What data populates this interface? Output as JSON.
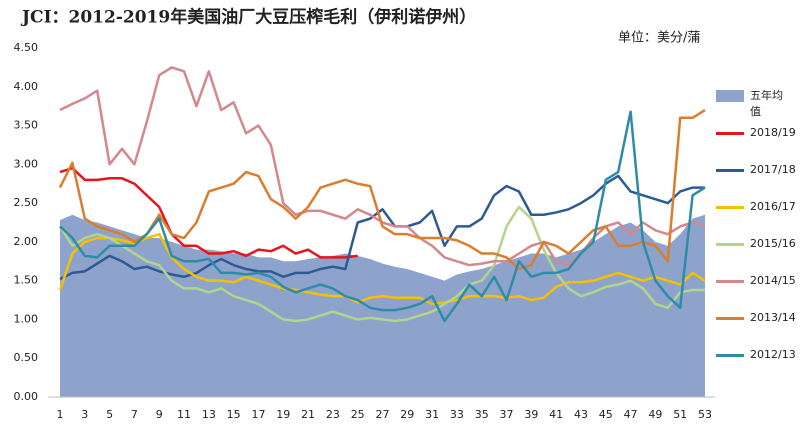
{
  "chart_data": {
    "type": "line",
    "title": "JCI：2012-2019年美国油厂大豆压榨毛利（伊利诺伊州）",
    "unit_label": "单位：美分/蒲",
    "categories": [
      1,
      null,
      3,
      null,
      5,
      null,
      7,
      null,
      9,
      null,
      11,
      null,
      13,
      null,
      15,
      null,
      17,
      null,
      19,
      null,
      21,
      null,
      23,
      null,
      25,
      null,
      27,
      null,
      29,
      null,
      31,
      null,
      33,
      null,
      35,
      null,
      37,
      null,
      39,
      null,
      41,
      null,
      43,
      null,
      45,
      null,
      47,
      null,
      49,
      null,
      51,
      null,
      53
    ],
    "ylim": [
      0,
      4.5
    ],
    "yticks": [
      {
        "value": 0,
        "label": "0.00"
      },
      {
        "value": 0.5,
        "label": "0.50"
      },
      {
        "value": 1,
        "label": "1.00"
      },
      {
        "value": 1.5,
        "label": "1.50"
      },
      {
        "value": 2,
        "label": "2.00"
      },
      {
        "value": 2.5,
        "label": "2.50"
      },
      {
        "value": 3,
        "label": "3.00"
      },
      {
        "value": 3.5,
        "label": "3.50"
      },
      {
        "value": 4,
        "label": "4.00"
      },
      {
        "value": 4.5,
        "label": "4.50"
      }
    ],
    "grid": false,
    "legend": "right",
    "series": [
      {
        "name": "五年均值",
        "type": "area",
        "color": "#8ea3cc",
        "values": [
          2.28,
          2.35,
          2.28,
          2.25,
          2.2,
          2.15,
          2.1,
          2.05,
          2.05,
          2.0,
          1.95,
          1.9,
          1.9,
          1.88,
          1.85,
          1.85,
          1.8,
          1.8,
          1.75,
          1.75,
          1.78,
          1.8,
          1.82,
          1.85,
          1.82,
          1.78,
          1.72,
          1.68,
          1.65,
          1.6,
          1.55,
          1.5,
          1.58,
          1.62,
          1.65,
          1.7,
          1.75,
          1.8,
          1.85,
          1.85,
          1.8,
          1.85,
          1.9,
          2.0,
          2.1,
          2.2,
          2.25,
          2.15,
          2.0,
          1.95,
          2.1,
          2.3,
          2.35
        ]
      },
      {
        "name": "2018/19",
        "type": "line",
        "color": "#e8141c",
        "values": [
          2.9,
          2.95,
          2.8,
          2.8,
          2.82,
          2.82,
          2.75,
          2.6,
          2.45,
          2.1,
          1.95,
          1.95,
          1.85,
          1.85,
          1.88,
          1.82,
          1.9,
          1.88,
          1.95,
          1.85,
          1.9,
          1.8,
          1.8,
          1.8,
          1.82,
          null,
          null,
          null,
          null,
          null,
          null,
          null,
          null,
          null,
          null,
          null,
          null,
          null,
          null,
          null,
          null,
          null,
          null,
          null,
          null,
          null,
          null,
          null,
          null,
          null,
          null,
          null,
          null
        ]
      },
      {
        "name": "2017/18",
        "type": "line",
        "color": "#2e5a94",
        "values": [
          1.52,
          1.6,
          1.62,
          1.72,
          1.82,
          1.75,
          1.65,
          1.68,
          1.62,
          1.58,
          1.55,
          1.6,
          1.7,
          1.78,
          1.7,
          1.65,
          1.62,
          1.62,
          1.55,
          1.6,
          1.6,
          1.65,
          1.68,
          1.65,
          2.25,
          2.3,
          2.42,
          2.2,
          2.2,
          2.25,
          2.4,
          1.95,
          2.2,
          2.2,
          2.3,
          2.6,
          2.72,
          2.65,
          2.35,
          2.35,
          2.38,
          2.42,
          2.5,
          2.6,
          2.75,
          2.85,
          2.65,
          2.6,
          2.55,
          2.5,
          2.65,
          2.7,
          2.7
        ]
      },
      {
        "name": "2016/17",
        "type": "line",
        "color": "#f5c000",
        "values": [
          1.38,
          1.85,
          2.0,
          2.05,
          2.05,
          2.02,
          1.98,
          2.05,
          2.1,
          1.8,
          1.65,
          1.55,
          1.5,
          1.5,
          1.48,
          1.55,
          1.5,
          1.45,
          1.4,
          1.38,
          1.35,
          1.32,
          1.3,
          1.3,
          1.22,
          1.28,
          1.3,
          1.28,
          1.28,
          1.28,
          1.2,
          1.22,
          1.25,
          1.3,
          1.3,
          1.3,
          1.28,
          1.3,
          1.25,
          1.28,
          1.42,
          1.48,
          1.48,
          1.5,
          1.55,
          1.6,
          1.55,
          1.5,
          1.55,
          1.5,
          1.45,
          1.6,
          1.5
        ]
      },
      {
        "name": "2015/16",
        "type": "line",
        "color": "#b3d48a",
        "values": [
          2.2,
          1.95,
          2.05,
          2.1,
          2.05,
          1.95,
          1.85,
          1.75,
          1.7,
          1.5,
          1.4,
          1.4,
          1.35,
          1.4,
          1.3,
          1.25,
          1.2,
          1.1,
          1.0,
          0.98,
          1.0,
          1.05,
          1.1,
          1.05,
          1.0,
          1.02,
          1.0,
          0.98,
          1.0,
          1.05,
          1.1,
          1.2,
          1.3,
          1.45,
          1.5,
          1.7,
          2.2,
          2.45,
          2.3,
          1.9,
          1.6,
          1.4,
          1.3,
          1.35,
          1.42,
          1.45,
          1.5,
          1.4,
          1.2,
          1.15,
          1.35,
          1.38,
          1.38
        ]
      },
      {
        "name": "2014/15",
        "type": "line",
        "color": "#d4888c",
        "values": [
          3.7,
          3.78,
          3.85,
          3.95,
          3.0,
          3.2,
          3.0,
          3.55,
          4.15,
          4.25,
          4.2,
          3.75,
          4.2,
          3.7,
          3.8,
          3.4,
          3.5,
          3.25,
          2.5,
          2.35,
          2.4,
          2.4,
          2.35,
          2.3,
          2.42,
          2.35,
          2.25,
          2.2,
          2.2,
          2.05,
          1.95,
          1.8,
          1.75,
          1.7,
          1.72,
          1.75,
          1.75,
          1.85,
          1.95,
          2.0,
          1.75,
          1.7,
          1.85,
          2.05,
          2.2,
          2.25,
          2.1,
          2.25,
          2.15,
          2.1,
          2.2,
          2.25,
          2.22
        ]
      },
      {
        "name": "2013/14",
        "type": "line",
        "color": "#d97d2e",
        "values": [
          2.7,
          3.02,
          2.3,
          2.2,
          2.15,
          2.1,
          2.0,
          2.1,
          2.35,
          2.1,
          2.05,
          2.25,
          2.65,
          2.7,
          2.75,
          2.9,
          2.85,
          2.55,
          2.45,
          2.3,
          2.45,
          2.7,
          2.75,
          2.8,
          2.75,
          2.72,
          2.2,
          2.1,
          2.1,
          2.05,
          2.05,
          2.05,
          2.02,
          1.95,
          1.85,
          1.85,
          1.8,
          1.65,
          1.7,
          2.0,
          1.95,
          1.85,
          2.0,
          2.15,
          2.2,
          1.95,
          1.95,
          2.0,
          1.95,
          1.75,
          3.6,
          3.6,
          3.7
        ]
      },
      {
        "name": "2012/13",
        "type": "line",
        "color": "#2e8ca8",
        "values": [
          2.2,
          2.05,
          1.82,
          1.8,
          1.95,
          1.95,
          1.95,
          2.1,
          2.3,
          1.82,
          1.75,
          1.75,
          1.78,
          1.6,
          1.6,
          1.58,
          1.6,
          1.55,
          1.42,
          1.35,
          1.4,
          1.45,
          1.4,
          1.3,
          1.25,
          1.15,
          1.12,
          1.12,
          1.15,
          1.2,
          1.3,
          0.98,
          1.2,
          1.45,
          1.3,
          1.55,
          1.25,
          1.75,
          1.55,
          1.6,
          1.6,
          1.65,
          1.85,
          2.0,
          2.8,
          2.9,
          3.68,
          2.0,
          1.5,
          1.3,
          1.15,
          2.6,
          2.7
        ]
      }
    ]
  }
}
